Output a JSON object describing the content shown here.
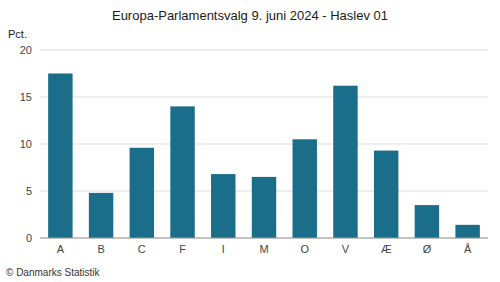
{
  "chart_data": {
    "type": "bar",
    "title": "Europa-Parlamentsvalg 9. juni 2024 - Haslev 01",
    "ylabel": "Pct.",
    "annotations": [
      "© Danmarks Statistik"
    ],
    "categories": [
      "A",
      "B",
      "C",
      "F",
      "I",
      "M",
      "O",
      "V",
      "Æ",
      "Ø",
      "Å"
    ],
    "values": [
      17.5,
      4.8,
      9.6,
      14.0,
      6.8,
      6.5,
      10.5,
      16.2,
      9.3,
      3.5,
      1.4
    ],
    "color": "#1a6e8a",
    "ylim": [
      0,
      20
    ],
    "yticks": [
      0,
      5,
      10,
      15,
      20
    ],
    "grid": true
  }
}
